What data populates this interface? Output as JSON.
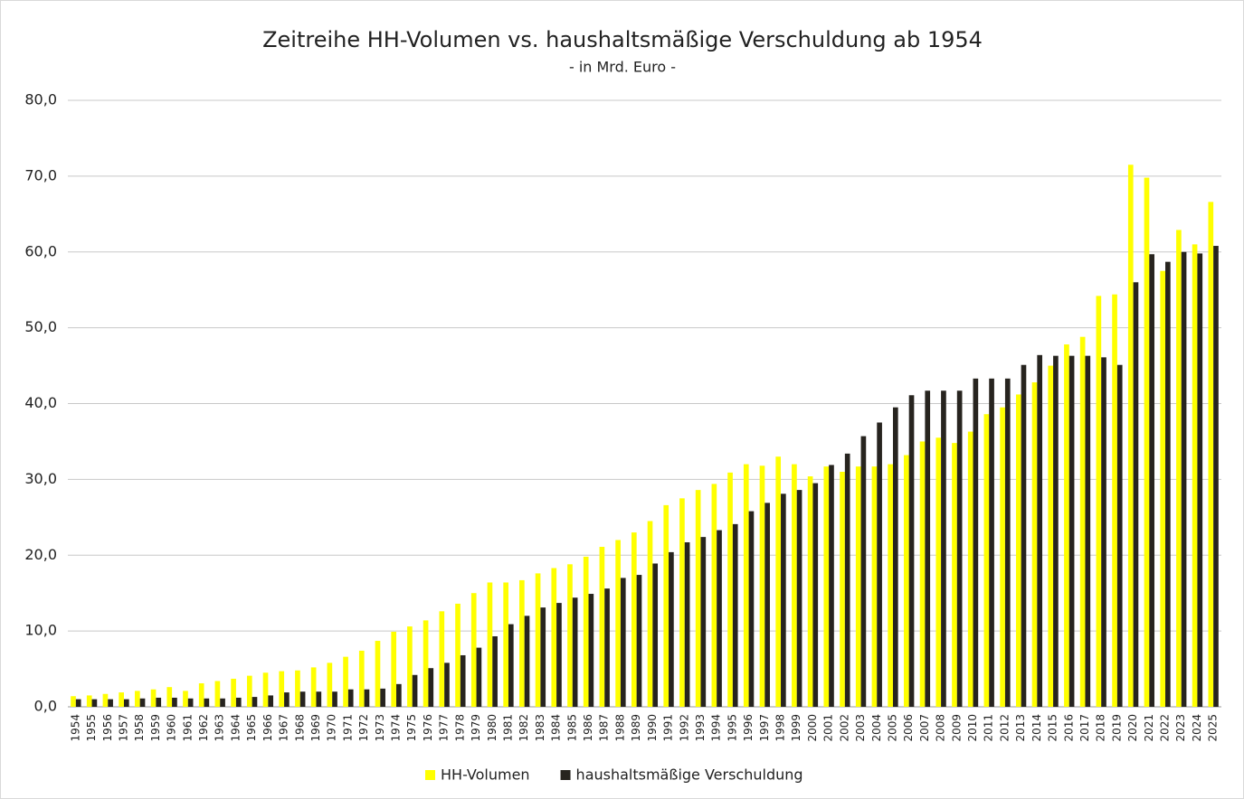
{
  "chart_data": {
    "type": "bar",
    "title": "Zeitreihe HH-Volumen vs. haushaltsmäßige Verschuldung ab 1954",
    "subtitle": "- in Mrd. Euro -",
    "categories": [
      "1954",
      "1955",
      "1956",
      "1957",
      "1958",
      "1959",
      "1960",
      "1961",
      "1962",
      "1963",
      "1964",
      "1965",
      "1966",
      "1967",
      "1968",
      "1969",
      "1970",
      "1971",
      "1972",
      "1973",
      "1974",
      "1975",
      "1976",
      "1977",
      "1978",
      "1979",
      "1980",
      "1981",
      "1982",
      "1983",
      "1984",
      "1985",
      "1986",
      "1987",
      "1988",
      "1989",
      "1990",
      "1991",
      "1992",
      "1993",
      "1994",
      "1995",
      "1996",
      "1997",
      "1998",
      "1999",
      "2000",
      "2001",
      "2002",
      "2003",
      "2004",
      "2005",
      "2006",
      "2007",
      "2008",
      "2009",
      "2010",
      "2011",
      "2012",
      "2013",
      "2014",
      "2015",
      "2016",
      "2017",
      "2018",
      "2019",
      "2020",
      "2021",
      "2022",
      "2023",
      "2024",
      "2025"
    ],
    "series": [
      {
        "name": "HH-Volumen",
        "color": "#ffff00",
        "values": [
          1.4,
          1.5,
          1.7,
          1.9,
          2.1,
          2.3,
          2.6,
          2.1,
          3.1,
          3.4,
          3.7,
          4.1,
          4.5,
          4.7,
          4.8,
          5.2,
          5.8,
          6.6,
          7.4,
          8.7,
          9.9,
          10.6,
          11.4,
          12.6,
          13.6,
          15.0,
          16.4,
          16.4,
          16.7,
          17.6,
          18.3,
          18.8,
          19.8,
          21.1,
          22.0,
          23.0,
          24.5,
          26.6,
          27.5,
          28.6,
          29.4,
          30.9,
          32.0,
          31.8,
          33.0,
          32.0,
          30.4,
          31.7,
          31.0,
          31.7,
          31.7,
          32.0,
          33.2,
          35.0,
          35.5,
          34.8,
          36.3,
          38.6,
          39.5,
          41.2,
          42.8,
          45.0,
          47.8,
          48.8,
          54.2,
          54.4,
          71.5,
          69.8,
          57.5,
          62.9,
          61.0,
          66.6
        ]
      },
      {
        "name": "haushaltsmäßige Verschuldung",
        "color": "#27241f",
        "values": [
          1.0,
          1.0,
          1.0,
          1.0,
          1.1,
          1.2,
          1.2,
          1.1,
          1.1,
          1.1,
          1.2,
          1.3,
          1.5,
          1.9,
          2.0,
          2.0,
          2.0,
          2.3,
          2.3,
          2.4,
          3.0,
          4.2,
          5.1,
          5.8,
          6.8,
          7.8,
          9.3,
          10.9,
          12.0,
          13.1,
          13.7,
          14.4,
          14.9,
          15.6,
          17.0,
          17.4,
          18.9,
          20.4,
          21.7,
          22.4,
          23.3,
          24.1,
          25.8,
          26.9,
          28.1,
          28.6,
          29.5,
          31.9,
          33.4,
          35.7,
          37.5,
          39.5,
          41.1,
          41.7,
          41.7,
          41.7,
          43.3,
          43.3,
          43.3,
          45.1,
          46.4,
          46.3,
          46.3,
          46.3,
          46.1,
          45.1,
          56.0,
          59.7,
          58.7,
          60.0,
          59.8,
          60.8
        ]
      }
    ],
    "ylim": [
      0,
      80
    ],
    "yticks": [
      {
        "value": 0,
        "label": "0,0"
      },
      {
        "value": 10,
        "label": "10,0"
      },
      {
        "value": 20,
        "label": "20,0"
      },
      {
        "value": 30,
        "label": "30,0"
      },
      {
        "value": 40,
        "label": "40,0"
      },
      {
        "value": 50,
        "label": "50,0"
      },
      {
        "value": 60,
        "label": "60,0"
      },
      {
        "value": 70,
        "label": "70,0"
      },
      {
        "value": 80,
        "label": "80,0"
      }
    ],
    "grid": true,
    "legend": "bottom"
  }
}
